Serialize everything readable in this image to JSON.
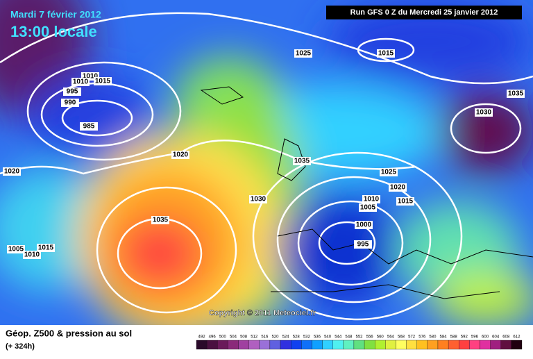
{
  "header": {
    "date": "Mardi 7 février 2012",
    "time": "13:00 locale",
    "run": "Run GFS 0 Z du Mercredi 25 janvier 2012"
  },
  "copyright": "Copyright © 2011 Meteociel.fr",
  "isobar_labels": [
    1025,
    1015,
    1010,
    1010,
    1015,
    995,
    990,
    985,
    1035,
    1030,
    1020,
    1020,
    1035,
    1025,
    1020,
    1030,
    1010,
    1015,
    1005,
    1035,
    1000,
    995,
    1005,
    1015,
    1010
  ],
  "legend": {
    "title": "Géop. Z500 & pression au sol",
    "lead": "(+ 324h)",
    "labels": [
      492,
      496,
      500,
      504,
      508,
      512,
      516,
      520,
      524,
      528,
      532,
      536,
      540,
      544,
      548,
      552,
      556,
      560,
      564,
      568,
      572,
      576,
      580,
      584,
      588,
      592,
      596,
      600,
      604,
      608,
      612
    ],
    "colors": [
      "#2a0a2a",
      "#4a1040",
      "#6a1a5a",
      "#8a2a7a",
      "#a040a0",
      "#b060c0",
      "#9a70d8",
      "#6060e0",
      "#3030e0",
      "#1040f0",
      "#1070f8",
      "#10a0ff",
      "#30d0ff",
      "#50f0f0",
      "#60f0c0",
      "#60e080",
      "#80e040",
      "#b0f030",
      "#e0f040",
      "#ffff60",
      "#ffe040",
      "#ffc020",
      "#ffa020",
      "#ff8020",
      "#ff6030",
      "#ff4040",
      "#ff4080",
      "#e030a0",
      "#a02080",
      "#601040",
      "#200010"
    ]
  }
}
